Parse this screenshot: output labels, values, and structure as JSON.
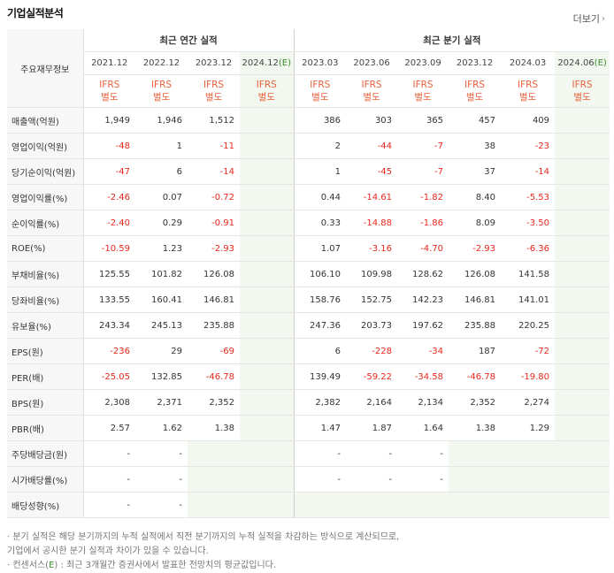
{
  "header": {
    "title": "기업실적분석",
    "more_label": "더보기",
    "more_icon": "chevron-right-icon"
  },
  "table": {
    "row_header": "주요재무정보",
    "groups": {
      "annual": "최근 연간 실적",
      "quarterly": "최근 분기 실적"
    },
    "periods": [
      {
        "label": "2021.12",
        "est": ""
      },
      {
        "label": "2022.12",
        "est": ""
      },
      {
        "label": "2023.12",
        "est": ""
      },
      {
        "label": "2024.12",
        "est": "(E)"
      },
      {
        "label": "2023.03",
        "est": ""
      },
      {
        "label": "2023.06",
        "est": ""
      },
      {
        "label": "2023.09",
        "est": ""
      },
      {
        "label": "2023.12",
        "est": ""
      },
      {
        "label": "2024.03",
        "est": ""
      },
      {
        "label": "2024.06",
        "est": "(E)"
      }
    ],
    "ifrs": {
      "line1": "IFRS",
      "line2": "별도"
    },
    "rows": [
      {
        "label": "매출액(억원)",
        "values": [
          "1,949",
          "1,946",
          "1,512",
          "",
          "386",
          "303",
          "365",
          "457",
          "409",
          ""
        ]
      },
      {
        "label": "영업이익(억원)",
        "values": [
          "-48",
          "1",
          "-11",
          "",
          "2",
          "-44",
          "-7",
          "38",
          "-23",
          ""
        ]
      },
      {
        "label": "당기순이익(억원)",
        "values": [
          "-47",
          "6",
          "-14",
          "",
          "1",
          "-45",
          "-7",
          "37",
          "-14",
          ""
        ]
      },
      {
        "label": "영업이익률(%)",
        "values": [
          "-2.46",
          "0.07",
          "-0.72",
          "",
          "0.44",
          "-14.61",
          "-1.82",
          "8.40",
          "-5.53",
          ""
        ]
      },
      {
        "label": "순이익률(%)",
        "values": [
          "-2.40",
          "0.29",
          "-0.91",
          "",
          "0.33",
          "-14.88",
          "-1.86",
          "8.09",
          "-3.50",
          ""
        ]
      },
      {
        "label": "ROE(%)",
        "values": [
          "-10.59",
          "1.23",
          "-2.93",
          "",
          "1.07",
          "-3.16",
          "-4.70",
          "-2.93",
          "-6.36",
          ""
        ]
      },
      {
        "label": "부채비율(%)",
        "values": [
          "125.55",
          "101.82",
          "126.08",
          "",
          "106.10",
          "109.98",
          "128.62",
          "126.08",
          "141.58",
          ""
        ]
      },
      {
        "label": "당좌비율(%)",
        "values": [
          "133.55",
          "160.41",
          "146.81",
          "",
          "158.76",
          "152.75",
          "142.23",
          "146.81",
          "141.01",
          ""
        ]
      },
      {
        "label": "유보율(%)",
        "values": [
          "243.34",
          "245.13",
          "235.88",
          "",
          "247.36",
          "203.73",
          "197.62",
          "235.88",
          "220.25",
          ""
        ]
      },
      {
        "label": "EPS(원)",
        "values": [
          "-236",
          "29",
          "-69",
          "",
          "6",
          "-228",
          "-34",
          "187",
          "-72",
          ""
        ]
      },
      {
        "label": "PER(배)",
        "values": [
          "-25.05",
          "132.85",
          "-46.78",
          "",
          "139.49",
          "-59.22",
          "-34.58",
          "-46.78",
          "-19.80",
          ""
        ]
      },
      {
        "label": "BPS(원)",
        "values": [
          "2,308",
          "2,371",
          "2,352",
          "",
          "2,382",
          "2,164",
          "2,134",
          "2,352",
          "2,274",
          ""
        ]
      },
      {
        "label": "PBR(배)",
        "values": [
          "2.57",
          "1.62",
          "1.38",
          "",
          "1.47",
          "1.87",
          "1.64",
          "1.38",
          "1.29",
          ""
        ]
      },
      {
        "label": "주당배당금(원)",
        "values": [
          "-",
          "-",
          "",
          "",
          "-",
          "-",
          "-",
          "",
          "",
          ""
        ]
      },
      {
        "label": "시가배당률(%)",
        "values": [
          "-",
          "-",
          "",
          "",
          "-",
          "-",
          "-",
          "",
          "",
          ""
        ]
      },
      {
        "label": "배당성향(%)",
        "values": [
          "-",
          "-",
          "",
          "",
          "",
          "",
          "",
          "",
          "",
          ""
        ]
      }
    ]
  },
  "notes": {
    "line1": "· 분기 실적은 해당 분기까지의 누적 실적에서 직전 분기까지의 누적 실적을 차감하는 방식으로 계산되므로,",
    "line2": "  기업에서 공시한 분기 실적과 차이가 있을 수 있습니다.",
    "line3_pre": "· 컨센서스(",
    "line3_e": "E",
    "line3_post": ") : 최근 3개월간 증권사에서 발표한 전망치의 평균값입니다."
  }
}
